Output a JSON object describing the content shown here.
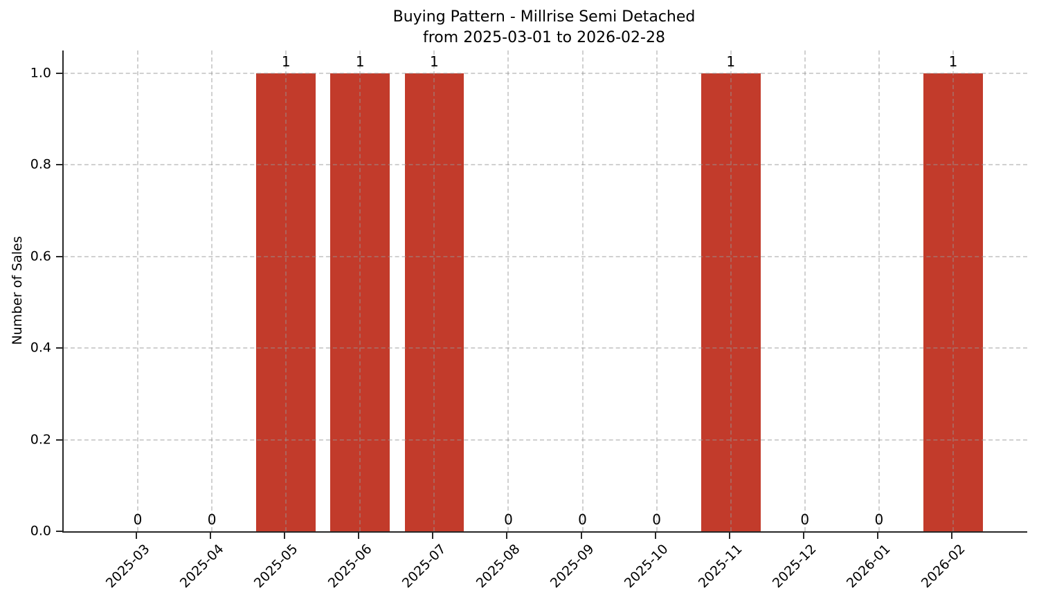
{
  "chart_data": {
    "type": "bar",
    "title": "Buying Pattern - Millrise Semi Detached",
    "subtitle": "from 2025-03-01 to 2026-02-28",
    "ylabel": "Number of Sales",
    "xlabel": "",
    "categories": [
      "2025-03",
      "2025-04",
      "2025-05",
      "2025-06",
      "2025-07",
      "2025-08",
      "2025-09",
      "2025-10",
      "2025-11",
      "2025-12",
      "2026-01",
      "2026-02"
    ],
    "values": [
      0,
      0,
      1,
      1,
      1,
      0,
      0,
      0,
      1,
      0,
      0,
      1
    ],
    "bar_value_labels": [
      "0",
      "0",
      "1",
      "1",
      "1",
      "0",
      "0",
      "0",
      "1",
      "0",
      "0",
      "1"
    ],
    "ylim": [
      0,
      1.05
    ],
    "ytick_labels": [
      "0.0",
      "0.2",
      "0.4",
      "0.6",
      "0.8",
      "1.0"
    ],
    "ytick_values": [
      0.0,
      0.2,
      0.4,
      0.6,
      0.8,
      1.0
    ],
    "bar_color": "#c23b2b",
    "axis_color": "#262626",
    "grid": "dashed",
    "grid_color": "#c9c9c9",
    "legend": "none",
    "xtick_rotation_deg": 45
  }
}
